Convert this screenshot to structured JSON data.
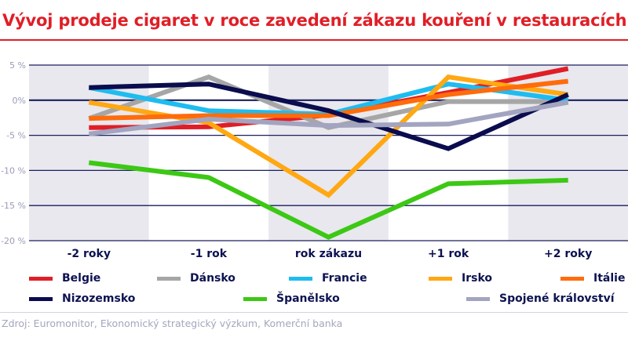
{
  "header": {
    "title": "Vývoj prodeje cigaret v roce zavedení zákazu kouření v restauracích"
  },
  "footer": {
    "source": "Zdroj: Euromonitor, Ekonomický strategický výzkum, Komerční banka"
  },
  "colors": {
    "title": "#e01e26",
    "band": "#e8e8ee",
    "grid": "#1a1f5c",
    "tick_label": "#9a9cb8",
    "category_label": "#0c1250"
  },
  "chart_data": {
    "type": "line",
    "title": "Vývoj prodeje cigaret v roce zavedení zákazu kouření v restauracích",
    "xlabel": "",
    "ylabel": "",
    "categories": [
      "-2 roky",
      "-1 rok",
      "rok zákazu",
      "+1 rok",
      "+2 roky"
    ],
    "ylim": [
      -20,
      5
    ],
    "yticks": [
      5,
      0,
      -5,
      -10,
      -15,
      -20
    ],
    "ytick_labels": [
      "5 %",
      "0%",
      "-5 %",
      "-10 %",
      "-15 %",
      "-20 %"
    ],
    "grid": true,
    "legend_position": "bottom",
    "series": [
      {
        "name": "Belgie",
        "color": "#e01e26",
        "values": [
          -3.9,
          -3.8,
          -2.1,
          1.1,
          4.5
        ]
      },
      {
        "name": "Dánsko",
        "color": "#a6a6a6",
        "values": [
          -2.6,
          3.3,
          -3.9,
          -0.2,
          -0.2
        ]
      },
      {
        "name": "Francie",
        "color": "#1ebcf0",
        "values": [
          1.8,
          -1.5,
          -2.0,
          2.3,
          0.0
        ]
      },
      {
        "name": "Irsko",
        "color": "#ffa812",
        "values": [
          -0.3,
          -3.2,
          -13.5,
          3.3,
          0.8
        ]
      },
      {
        "name": "Itálie",
        "color": "#ff6c0c",
        "values": [
          -2.6,
          -2.2,
          -2.2,
          0.8,
          2.7
        ]
      },
      {
        "name": "Nizozemsko",
        "color": "#0a0c4e",
        "values": [
          1.8,
          2.3,
          -1.5,
          -6.9,
          0.8
        ]
      },
      {
        "name": "Španělsko",
        "color": "#3cc814",
        "values": [
          -8.9,
          -11.0,
          -19.5,
          -11.9,
          -11.4
        ]
      },
      {
        "name": "Spojené království",
        "color": "#a2a4c0",
        "values": [
          -4.8,
          -2.7,
          -3.6,
          -3.4,
          -0.3
        ]
      }
    ]
  },
  "legend": {
    "items": [
      {
        "label": "Belgie",
        "color": "#e01e26"
      },
      {
        "label": "Dánsko",
        "color": "#a6a6a6"
      },
      {
        "label": "Francie",
        "color": "#1ebcf0"
      },
      {
        "label": "Irsko",
        "color": "#ffa812"
      },
      {
        "label": "Itálie",
        "color": "#ff6c0c"
      },
      {
        "label": "Nizozemsko",
        "color": "#0a0c4e"
      },
      {
        "label": "Španělsko",
        "color": "#3cc814"
      },
      {
        "label": "Spojené království",
        "color": "#a2a4c0"
      }
    ]
  }
}
